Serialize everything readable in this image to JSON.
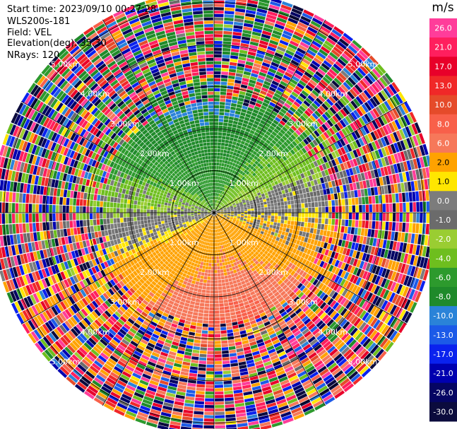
{
  "header": {
    "start_time": "Start time: 2023/09/10 00:27:28",
    "instrument": "WLS200s-181",
    "field": "Field: VEL",
    "elevation": "Elevation(deg): 35.30",
    "nrays": "NRays: 120"
  },
  "chart_data": {
    "type": "heatmap",
    "projection": "polar-ppi",
    "field": "VEL",
    "unit": "m/s",
    "nrays": 120,
    "range_rings_km": [
      1.0,
      2.0,
      3.0,
      4.0,
      5.0
    ],
    "range_ring_labels": [
      "1.00km",
      "2.00km",
      "3.00km",
      "4.00km",
      "5.00km"
    ],
    "max_range_km": 5.3,
    "azimuth_lines_deg": [
      0,
      30,
      60,
      90,
      120,
      150,
      180,
      210,
      240,
      270,
      300,
      330
    ],
    "colorbar": {
      "title": "m/s",
      "tick_labels": [
        "26.0",
        "21.0",
        "17.0",
        "13.0",
        "10.0",
        "8.0",
        "6.0",
        "2.0",
        "1.0",
        "0.0",
        "-1.0",
        "-2.0",
        "-4.0",
        "-6.0",
        "-8.0",
        "-10.0",
        "-13.0",
        "-17.0",
        "-21.0",
        "-26.0",
        "-30.0"
      ],
      "bins": [
        {
          "from": 26,
          "to": 30,
          "color": "#ff3d9a"
        },
        {
          "from": 21,
          "to": 26,
          "color": "#ff1f5e"
        },
        {
          "from": 17,
          "to": 21,
          "color": "#e8002a"
        },
        {
          "from": 13,
          "to": 17,
          "color": "#f02828"
        },
        {
          "from": 10,
          "to": 13,
          "color": "#e54b2a"
        },
        {
          "from": 8,
          "to": 10,
          "color": "#f8604a"
        },
        {
          "from": 6,
          "to": 8,
          "color": "#f6785a"
        },
        {
          "from": 2,
          "to": 6,
          "color": "#ffa200"
        },
        {
          "from": 1,
          "to": 2,
          "color": "#ffe600"
        },
        {
          "from": 0,
          "to": 1,
          "color": "#7c7c7c"
        },
        {
          "from": -1,
          "to": 0,
          "color": "#6b6b6b"
        },
        {
          "from": -2,
          "to": -1,
          "color": "#9acd32"
        },
        {
          "from": -4,
          "to": -2,
          "color": "#6ebe1e"
        },
        {
          "from": -6,
          "to": -4,
          "color": "#2d9a2d"
        },
        {
          "from": -8,
          "to": -6,
          "color": "#1f8a2a"
        },
        {
          "from": -10,
          "to": -8,
          "color": "#2a83d8"
        },
        {
          "from": -13,
          "to": -10,
          "color": "#1c5ae8"
        },
        {
          "from": -17,
          "to": -13,
          "color": "#0a22ee"
        },
        {
          "from": -21,
          "to": -17,
          "color": "#0000b0"
        },
        {
          "from": -26,
          "to": -21,
          "color": "#050563"
        },
        {
          "from": -30,
          "to": -26,
          "color": "#0b0b3d"
        }
      ]
    }
  }
}
